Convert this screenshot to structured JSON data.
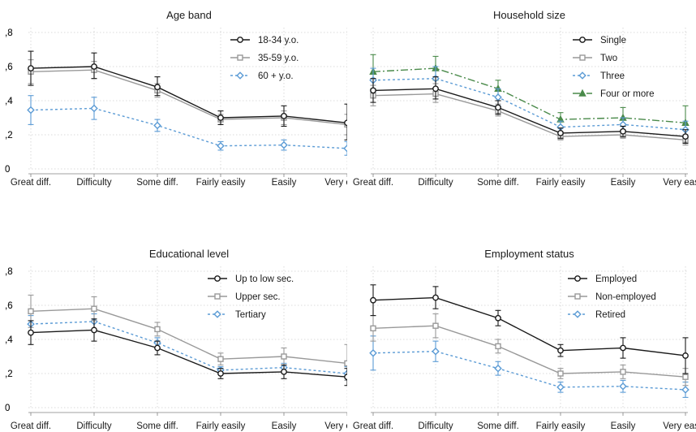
{
  "chart_data": [
    {
      "type": "line",
      "title": "Age band",
      "categories": [
        "Great diff.",
        "Difficulty",
        "Some diff.",
        "Fairly easily",
        "Easily",
        "Very easily"
      ],
      "ylim": [
        0,
        0.8
      ],
      "yticks": [
        0,
        0.2,
        0.4,
        0.6,
        0.8
      ],
      "ytick_labels": [
        "0",
        ",2",
        ",4",
        ",6",
        ",8"
      ],
      "grid": true,
      "legend_position": "top-right",
      "series": [
        {
          "name": "18-34 y.o.",
          "color": "#1a1a1a",
          "marker": "circle",
          "dash": "solid",
          "values": [
            0.59,
            0.6,
            0.48,
            0.3,
            0.31,
            0.27
          ],
          "ci_low": [
            0.49,
            0.53,
            0.43,
            0.26,
            0.25,
            0.17
          ],
          "ci_high": [
            0.69,
            0.68,
            0.54,
            0.34,
            0.37,
            0.38
          ]
        },
        {
          "name": "35-59 y.o.",
          "color": "#999999",
          "marker": "square",
          "dash": "solid",
          "values": [
            0.57,
            0.58,
            0.46,
            0.29,
            0.3,
            0.26
          ],
          "ci_low": [
            0.5,
            0.53,
            0.42,
            0.26,
            0.26,
            0.2
          ],
          "ci_high": [
            0.64,
            0.63,
            0.5,
            0.32,
            0.34,
            0.32
          ]
        },
        {
          "name": "60 + y.o.",
          "color": "#5b9bd5",
          "marker": "diamond",
          "dash": "dotted",
          "values": [
            0.345,
            0.355,
            0.255,
            0.135,
            0.14,
            0.12
          ],
          "ci_low": [
            0.26,
            0.29,
            0.22,
            0.11,
            0.11,
            0.08
          ],
          "ci_high": [
            0.43,
            0.42,
            0.29,
            0.16,
            0.17,
            0.16
          ]
        }
      ]
    },
    {
      "type": "line",
      "title": "Household size",
      "categories": [
        "Great diff.",
        "Difficulty",
        "Some diff.",
        "Fairly easily",
        "Easily",
        "Very easily"
      ],
      "ylim": [
        0,
        0.8
      ],
      "yticks": [
        0,
        0.2,
        0.4,
        0.6,
        0.8
      ],
      "ytick_labels": [
        "0",
        ",2",
        ",4",
        ",6",
        ",8"
      ],
      "grid": true,
      "legend_position": "top-right",
      "series": [
        {
          "name": "Single",
          "color": "#1a1a1a",
          "marker": "circle",
          "dash": "solid",
          "values": [
            0.46,
            0.47,
            0.36,
            0.21,
            0.22,
            0.19
          ],
          "ci_low": [
            0.39,
            0.41,
            0.32,
            0.18,
            0.19,
            0.15
          ],
          "ci_high": [
            0.53,
            0.54,
            0.4,
            0.24,
            0.25,
            0.23
          ]
        },
        {
          "name": "Two",
          "color": "#999999",
          "marker": "square",
          "dash": "solid",
          "values": [
            0.43,
            0.44,
            0.34,
            0.19,
            0.2,
            0.17
          ],
          "ci_low": [
            0.37,
            0.39,
            0.31,
            0.17,
            0.18,
            0.14
          ],
          "ci_high": [
            0.49,
            0.5,
            0.38,
            0.22,
            0.23,
            0.2
          ]
        },
        {
          "name": "Three",
          "color": "#5b9bd5",
          "marker": "diamond",
          "dash": "dotted",
          "values": [
            0.52,
            0.53,
            0.42,
            0.245,
            0.26,
            0.23
          ],
          "ci_low": [
            0.45,
            0.47,
            0.37,
            0.21,
            0.22,
            0.18
          ],
          "ci_high": [
            0.59,
            0.6,
            0.47,
            0.28,
            0.3,
            0.28
          ]
        },
        {
          "name": "Four or more",
          "color": "#4a8a4a",
          "marker": "triangle",
          "dash": "dashdot",
          "values": [
            0.57,
            0.59,
            0.47,
            0.29,
            0.3,
            0.27
          ],
          "ci_low": [
            0.47,
            0.52,
            0.42,
            0.25,
            0.25,
            0.19
          ],
          "ci_high": [
            0.67,
            0.66,
            0.52,
            0.33,
            0.36,
            0.37
          ]
        }
      ]
    },
    {
      "type": "line",
      "title": "Educational level",
      "categories": [
        "Great diff.",
        "Difficulty",
        "Some diff.",
        "Fairly easily",
        "Easily",
        "Very easily"
      ],
      "ylim": [
        0,
        0.8
      ],
      "yticks": [
        0,
        0.2,
        0.4,
        0.6,
        0.8
      ],
      "ytick_labels": [
        "0",
        ",2",
        ",4",
        ",6",
        ",8"
      ],
      "grid": true,
      "legend_position": "top-right",
      "series": [
        {
          "name": "Up to low sec.",
          "color": "#1a1a1a",
          "marker": "circle",
          "dash": "solid",
          "values": [
            0.44,
            0.455,
            0.35,
            0.2,
            0.21,
            0.18
          ],
          "ci_low": [
            0.37,
            0.39,
            0.31,
            0.17,
            0.17,
            0.13
          ],
          "ci_high": [
            0.51,
            0.52,
            0.39,
            0.23,
            0.25,
            0.23
          ]
        },
        {
          "name": "Upper sec.",
          "color": "#999999",
          "marker": "square",
          "dash": "solid",
          "values": [
            0.565,
            0.58,
            0.46,
            0.285,
            0.3,
            0.26
          ],
          "ci_low": [
            0.47,
            0.51,
            0.42,
            0.25,
            0.25,
            0.16
          ],
          "ci_high": [
            0.66,
            0.65,
            0.5,
            0.32,
            0.35,
            0.37
          ]
        },
        {
          "name": "Tertiary",
          "color": "#5b9bd5",
          "marker": "diamond",
          "dash": "dotted",
          "values": [
            0.49,
            0.505,
            0.38,
            0.22,
            0.235,
            0.2
          ],
          "ci_low": [
            0.44,
            0.46,
            0.35,
            0.2,
            0.21,
            0.16
          ],
          "ci_high": [
            0.54,
            0.55,
            0.41,
            0.24,
            0.26,
            0.24
          ]
        }
      ]
    },
    {
      "type": "line",
      "title": "Employment status",
      "categories": [
        "Great diff.",
        "Difficulty",
        "Some diff.",
        "Fairly easily",
        "Easily",
        "Very easily"
      ],
      "ylim": [
        0,
        0.8
      ],
      "yticks": [
        0,
        0.2,
        0.4,
        0.6,
        0.8
      ],
      "ytick_labels": [
        "0",
        ",2",
        ",4",
        ",6",
        ",8"
      ],
      "grid": true,
      "legend_position": "top-right",
      "series": [
        {
          "name": "Employed",
          "color": "#1a1a1a",
          "marker": "circle",
          "dash": "solid",
          "values": [
            0.63,
            0.645,
            0.525,
            0.335,
            0.35,
            0.305
          ],
          "ci_low": [
            0.54,
            0.58,
            0.48,
            0.3,
            0.29,
            0.2
          ],
          "ci_high": [
            0.72,
            0.71,
            0.57,
            0.37,
            0.41,
            0.41
          ]
        },
        {
          "name": "Non-employed",
          "color": "#999999",
          "marker": "square",
          "dash": "solid",
          "values": [
            0.465,
            0.48,
            0.36,
            0.2,
            0.21,
            0.18
          ],
          "ci_low": [
            0.39,
            0.41,
            0.32,
            0.17,
            0.17,
            0.13
          ],
          "ci_high": [
            0.54,
            0.55,
            0.4,
            0.23,
            0.25,
            0.23
          ]
        },
        {
          "name": "Retired",
          "color": "#5b9bd5",
          "marker": "diamond",
          "dash": "dotted",
          "values": [
            0.32,
            0.33,
            0.23,
            0.12,
            0.125,
            0.105
          ],
          "ci_low": [
            0.22,
            0.27,
            0.19,
            0.09,
            0.09,
            0.06
          ],
          "ci_high": [
            0.42,
            0.39,
            0.27,
            0.15,
            0.16,
            0.15
          ]
        }
      ]
    }
  ]
}
